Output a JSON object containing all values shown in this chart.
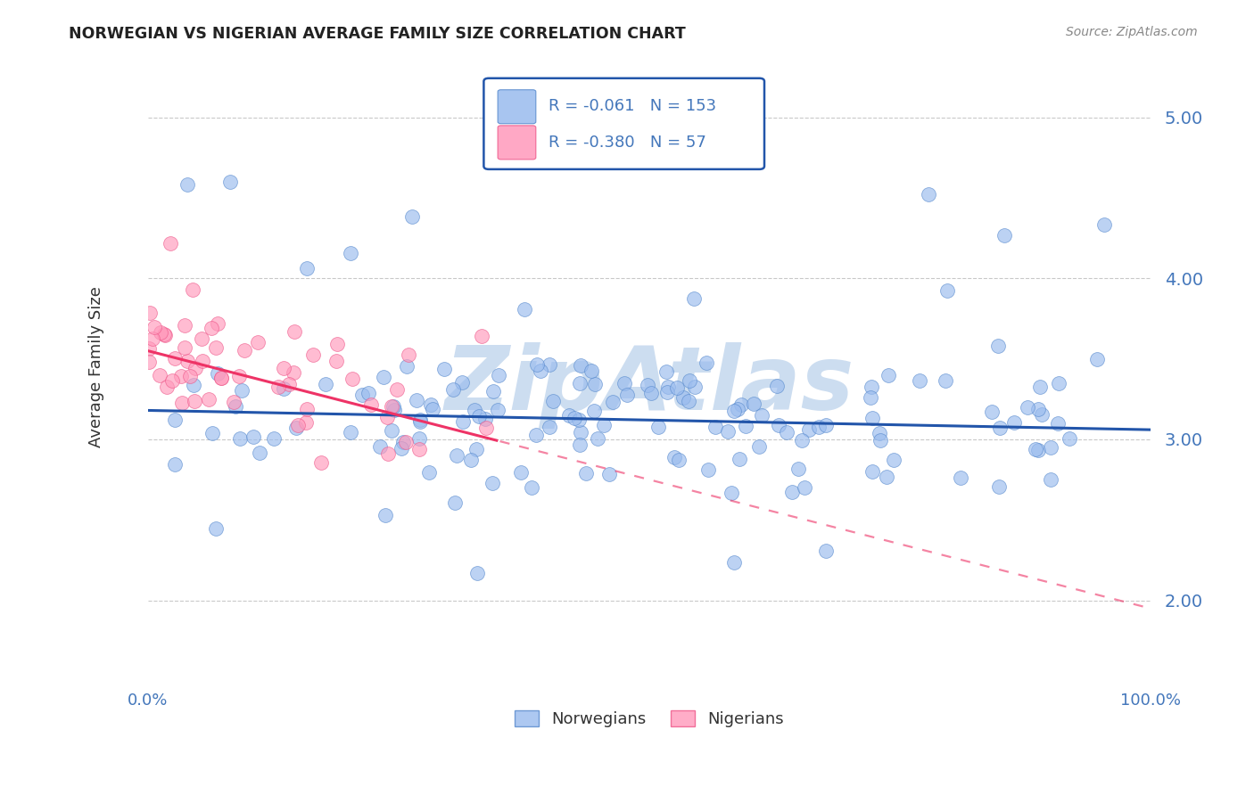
{
  "title": "NORWEGIAN VS NIGERIAN AVERAGE FAMILY SIZE CORRELATION CHART",
  "source": "Source: ZipAtlas.com",
  "ylabel": "Average Family Size",
  "ylim": [
    1.5,
    5.4
  ],
  "xlim": [
    0.0,
    1.0
  ],
  "yticks": [
    2.0,
    3.0,
    4.0,
    5.0
  ],
  "legend_norwegian": "Norwegians",
  "legend_nigerian": "Nigerians",
  "R_norwegian": -0.061,
  "N_norwegian": 153,
  "R_nigerian": -0.38,
  "N_nigerian": 57,
  "blue_dot_color": "#99BBEE",
  "pink_dot_color": "#FF99BB",
  "blue_edge_color": "#5588CC",
  "pink_edge_color": "#EE5588",
  "blue_line_color": "#2255AA",
  "pink_line_color": "#EE3366",
  "background_color": "#FFFFFF",
  "grid_color": "#BBBBBB",
  "title_color": "#222222",
  "watermark_color": "#CCDDF0",
  "axis_label_color": "#4477BB",
  "seed": 7
}
